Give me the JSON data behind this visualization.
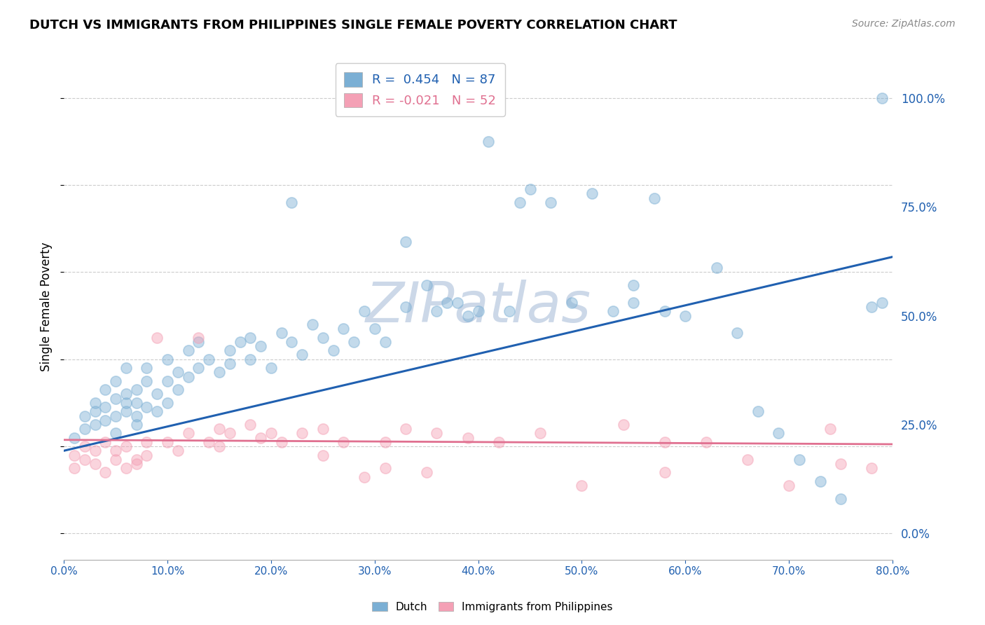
{
  "title": "DUTCH VS IMMIGRANTS FROM PHILIPPINES SINGLE FEMALE POVERTY CORRELATION CHART",
  "source": "Source: ZipAtlas.com",
  "ylabel": "Single Female Poverty",
  "right_yticks": [
    0.0,
    0.25,
    0.5,
    0.75,
    1.0
  ],
  "legend_R_dutch": "R =  0.454",
  "legend_N_dutch": "N = 87",
  "legend_R_phil": "R = -0.021",
  "legend_N_phil": "N = 52",
  "dutch_color": "#7bafd4",
  "phil_color": "#f4a0b5",
  "dutch_line_color": "#2060b0",
  "phil_line_color": "#e07090",
  "watermark": "ZIPatlas",
  "watermark_color": "#ccd8e8",
  "background_color": "#ffffff",
  "grid_color": "#cccccc",
  "dutch_x": [
    0.01,
    0.02,
    0.02,
    0.03,
    0.03,
    0.03,
    0.04,
    0.04,
    0.04,
    0.05,
    0.05,
    0.05,
    0.05,
    0.06,
    0.06,
    0.06,
    0.06,
    0.07,
    0.07,
    0.07,
    0.07,
    0.08,
    0.08,
    0.08,
    0.09,
    0.09,
    0.1,
    0.1,
    0.1,
    0.11,
    0.11,
    0.12,
    0.12,
    0.13,
    0.13,
    0.14,
    0.15,
    0.16,
    0.16,
    0.17,
    0.18,
    0.18,
    0.19,
    0.2,
    0.21,
    0.22,
    0.23,
    0.24,
    0.25,
    0.26,
    0.27,
    0.28,
    0.29,
    0.3,
    0.31,
    0.33,
    0.35,
    0.37,
    0.39,
    0.41,
    0.43,
    0.45,
    0.47,
    0.49,
    0.51,
    0.53,
    0.55,
    0.58,
    0.6,
    0.63,
    0.65,
    0.67,
    0.69,
    0.71,
    0.73,
    0.75,
    0.78,
    0.79,
    0.33,
    0.36,
    0.38,
    0.4,
    0.44,
    0.22,
    0.55,
    0.57,
    0.79
  ],
  "dutch_y": [
    0.22,
    0.24,
    0.27,
    0.25,
    0.28,
    0.3,
    0.26,
    0.29,
    0.33,
    0.27,
    0.31,
    0.35,
    0.23,
    0.28,
    0.32,
    0.3,
    0.38,
    0.25,
    0.3,
    0.33,
    0.27,
    0.29,
    0.35,
    0.38,
    0.32,
    0.28,
    0.35,
    0.3,
    0.4,
    0.33,
    0.37,
    0.36,
    0.42,
    0.38,
    0.44,
    0.4,
    0.37,
    0.42,
    0.39,
    0.44,
    0.4,
    0.45,
    0.43,
    0.38,
    0.46,
    0.44,
    0.41,
    0.48,
    0.45,
    0.42,
    0.47,
    0.44,
    0.51,
    0.47,
    0.44,
    0.67,
    0.57,
    0.53,
    0.5,
    0.9,
    0.51,
    0.79,
    0.76,
    0.53,
    0.78,
    0.51,
    0.57,
    0.51,
    0.5,
    0.61,
    0.46,
    0.28,
    0.23,
    0.17,
    0.12,
    0.08,
    0.52,
    0.53,
    0.52,
    0.51,
    0.53,
    0.51,
    0.76,
    0.76,
    0.53,
    0.77,
    1.0
  ],
  "phil_x": [
    0.01,
    0.01,
    0.02,
    0.02,
    0.03,
    0.03,
    0.04,
    0.04,
    0.05,
    0.05,
    0.06,
    0.06,
    0.07,
    0.07,
    0.08,
    0.08,
    0.09,
    0.1,
    0.11,
    0.12,
    0.13,
    0.14,
    0.15,
    0.16,
    0.18,
    0.19,
    0.21,
    0.23,
    0.25,
    0.27,
    0.29,
    0.31,
    0.33,
    0.36,
    0.39,
    0.42,
    0.46,
    0.5,
    0.54,
    0.58,
    0.62,
    0.66,
    0.7,
    0.74,
    0.78,
    0.15,
    0.2,
    0.25,
    0.31,
    0.35,
    0.58,
    0.75
  ],
  "phil_y": [
    0.18,
    0.15,
    0.17,
    0.2,
    0.16,
    0.19,
    0.14,
    0.21,
    0.17,
    0.19,
    0.15,
    0.2,
    0.17,
    0.16,
    0.18,
    0.21,
    0.45,
    0.21,
    0.19,
    0.23,
    0.45,
    0.21,
    0.2,
    0.23,
    0.25,
    0.22,
    0.21,
    0.23,
    0.24,
    0.21,
    0.13,
    0.21,
    0.24,
    0.23,
    0.22,
    0.21,
    0.23,
    0.11,
    0.25,
    0.21,
    0.21,
    0.17,
    0.11,
    0.24,
    0.15,
    0.24,
    0.23,
    0.18,
    0.15,
    0.14,
    0.14,
    0.16
  ],
  "dutch_trend_x": [
    0.0,
    0.8
  ],
  "dutch_trend_y": [
    0.19,
    0.635
  ],
  "phil_trend_x": [
    0.0,
    0.8
  ],
  "phil_trend_y": [
    0.215,
    0.205
  ],
  "xmin": 0.0,
  "xmax": 0.8,
  "ymin": -0.06,
  "ymax": 1.1
}
